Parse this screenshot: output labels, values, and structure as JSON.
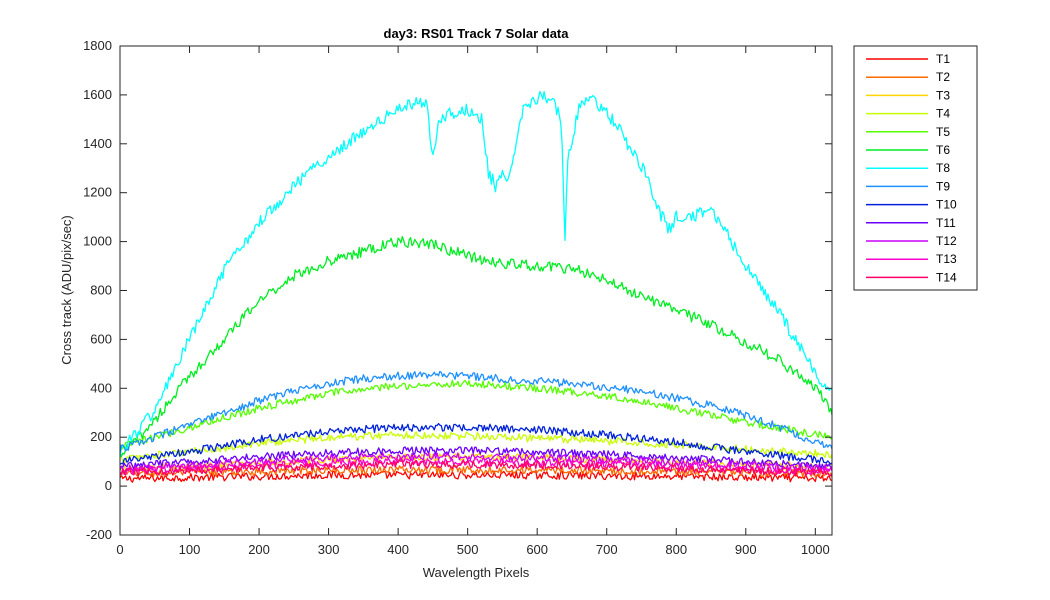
{
  "chart_data": {
    "type": "line",
    "title": "day3: RS01  Track 7 Solar data",
    "xlabel": "Wavelength Pixels",
    "ylabel": "Cross track (ADU/pix/sec)",
    "xlim": [
      0,
      1024
    ],
    "ylim": [
      -200,
      1800
    ],
    "xticks": [
      0,
      100,
      200,
      300,
      400,
      500,
      600,
      700,
      800,
      900,
      1000
    ],
    "yticks": [
      -200,
      0,
      200,
      400,
      600,
      800,
      1000,
      1200,
      1400,
      1600,
      1800
    ],
    "grid": false,
    "legend_position": "outside-top-right",
    "series": [
      {
        "name": "T1",
        "color": "#ff0000",
        "x": [
          0,
          100,
          200,
          300,
          400,
          500,
          600,
          700,
          800,
          900,
          1024
        ],
        "values": [
          30,
          35,
          40,
          45,
          45,
          45,
          45,
          42,
          40,
          35,
          30
        ]
      },
      {
        "name": "T2",
        "color": "#ff6a00",
        "x": [
          0,
          100,
          200,
          300,
          400,
          500,
          600,
          700,
          800,
          900,
          1024
        ],
        "values": [
          50,
          55,
          60,
          65,
          68,
          68,
          66,
          63,
          60,
          55,
          50
        ]
      },
      {
        "name": "T3",
        "color": "#ffd500",
        "x": [
          0,
          100,
          200,
          300,
          400,
          500,
          600,
          700,
          800,
          900,
          1024
        ],
        "values": [
          70,
          80,
          95,
          110,
          120,
          120,
          115,
          108,
          100,
          90,
          80
        ]
      },
      {
        "name": "T4",
        "color": "#c8ff00",
        "x": [
          0,
          100,
          200,
          300,
          400,
          500,
          600,
          700,
          800,
          900,
          1024
        ],
        "values": [
          110,
          140,
          175,
          200,
          210,
          205,
          195,
          185,
          170,
          150,
          130
        ]
      },
      {
        "name": "T5",
        "color": "#55ff00",
        "x": [
          0,
          100,
          200,
          300,
          400,
          500,
          600,
          700,
          800,
          900,
          1024
        ],
        "values": [
          160,
          240,
          320,
          380,
          410,
          420,
          400,
          370,
          320,
          260,
          200
        ]
      },
      {
        "name": "T6",
        "color": "#00ee22",
        "x": [
          0,
          50,
          100,
          150,
          200,
          250,
          300,
          350,
          400,
          450,
          500,
          550,
          600,
          650,
          700,
          750,
          800,
          850,
          900,
          950,
          1000,
          1024
        ],
        "values": [
          120,
          270,
          450,
          600,
          760,
          860,
          920,
          960,
          1000,
          990,
          940,
          910,
          900,
          890,
          840,
          780,
          720,
          660,
          590,
          510,
          400,
          310
        ]
      },
      {
        "name": "T8",
        "color": "#00ffff",
        "x": [
          0,
          50,
          100,
          150,
          200,
          250,
          300,
          350,
          400,
          440,
          450,
          460,
          480,
          500,
          520,
          530,
          540,
          550,
          560,
          580,
          600,
          620,
          635,
          640,
          645,
          650,
          660,
          680,
          700,
          720,
          740,
          760,
          770,
          780,
          790,
          800,
          820,
          850,
          870,
          900,
          950,
          1000,
          1024
        ],
        "values": [
          140,
          310,
          600,
          880,
          1080,
          1230,
          1350,
          1450,
          1540,
          1580,
          1350,
          1510,
          1530,
          1540,
          1500,
          1280,
          1230,
          1300,
          1250,
          1550,
          1590,
          1590,
          1500,
          1020,
          1400,
          1400,
          1550,
          1580,
          1530,
          1450,
          1350,
          1260,
          1150,
          1100,
          1050,
          1100,
          1100,
          1130,
          1050,
          900,
          700,
          460,
          380
        ]
      },
      {
        "name": "T9",
        "color": "#1e90ff",
        "x": [
          0,
          50,
          100,
          150,
          200,
          250,
          300,
          350,
          400,
          450,
          500,
          550,
          600,
          650,
          700,
          750,
          800,
          850,
          900,
          950,
          1000,
          1024
        ],
        "values": [
          150,
          200,
          250,
          300,
          350,
          390,
          420,
          440,
          450,
          455,
          450,
          440,
          430,
          420,
          405,
          390,
          360,
          330,
          290,
          240,
          180,
          150
        ]
      },
      {
        "name": "T10",
        "color": "#0022dd",
        "x": [
          0,
          100,
          200,
          300,
          400,
          500,
          600,
          700,
          800,
          900,
          1024
        ],
        "values": [
          100,
          140,
          190,
          225,
          240,
          240,
          230,
          210,
          180,
          140,
          100
        ]
      },
      {
        "name": "T11",
        "color": "#6a00ff",
        "x": [
          0,
          100,
          200,
          300,
          400,
          500,
          600,
          700,
          800,
          900,
          1024
        ],
        "values": [
          80,
          100,
          120,
          135,
          145,
          145,
          140,
          130,
          115,
          100,
          80
        ]
      },
      {
        "name": "T12",
        "color": "#cc00ff",
        "x": [
          0,
          100,
          200,
          300,
          400,
          500,
          600,
          700,
          800,
          900,
          1024
        ],
        "values": [
          70,
          85,
          100,
          115,
          120,
          120,
          115,
          108,
          98,
          85,
          70
        ]
      },
      {
        "name": "T13",
        "color": "#ff00cc",
        "x": [
          0,
          100,
          200,
          300,
          400,
          500,
          600,
          700,
          800,
          900,
          1024
        ],
        "values": [
          60,
          75,
          85,
          95,
          100,
          100,
          95,
          90,
          82,
          72,
          60
        ]
      },
      {
        "name": "T14",
        "color": "#ff0066",
        "x": [
          0,
          100,
          200,
          300,
          400,
          500,
          600,
          700,
          800,
          900,
          1024
        ],
        "values": [
          55,
          65,
          75,
          82,
          88,
          88,
          85,
          80,
          72,
          63,
          55
        ]
      }
    ]
  }
}
